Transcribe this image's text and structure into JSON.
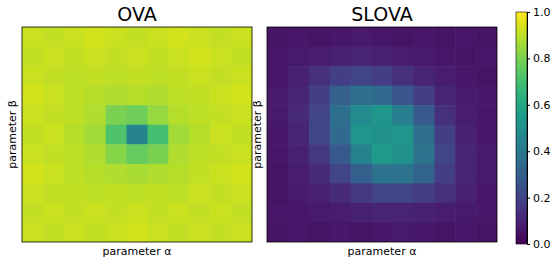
{
  "chart_data": [
    {
      "type": "heatmap",
      "title": "OVA",
      "x_label": "parameter α",
      "y_label": "parameter β",
      "tick_labels": false,
      "cells": [
        [
          0.92,
          0.91,
          0.92,
          0.93,
          0.92,
          0.91,
          0.92,
          0.93,
          0.92,
          0.91,
          0.92
        ],
        [
          0.91,
          0.92,
          0.91,
          0.92,
          0.91,
          0.92,
          0.91,
          0.92,
          0.93,
          0.92,
          0.91
        ],
        [
          0.92,
          0.91,
          0.9,
          0.91,
          0.9,
          0.91,
          0.9,
          0.91,
          0.92,
          0.91,
          0.92
        ],
        [
          0.93,
          0.92,
          0.9,
          0.89,
          0.88,
          0.89,
          0.88,
          0.9,
          0.91,
          0.92,
          0.93
        ],
        [
          0.92,
          0.91,
          0.9,
          0.88,
          0.8,
          0.78,
          0.84,
          0.89,
          0.9,
          0.91,
          0.92
        ],
        [
          0.91,
          0.92,
          0.89,
          0.86,
          0.72,
          0.45,
          0.7,
          0.86,
          0.89,
          0.92,
          0.91
        ],
        [
          0.92,
          0.91,
          0.9,
          0.88,
          0.82,
          0.76,
          0.8,
          0.88,
          0.9,
          0.91,
          0.92
        ],
        [
          0.93,
          0.92,
          0.9,
          0.89,
          0.88,
          0.87,
          0.88,
          0.89,
          0.91,
          0.92,
          0.93
        ],
        [
          0.92,
          0.91,
          0.91,
          0.9,
          0.91,
          0.9,
          0.91,
          0.9,
          0.92,
          0.91,
          0.92
        ],
        [
          0.91,
          0.92,
          0.91,
          0.92,
          0.91,
          0.92,
          0.91,
          0.92,
          0.91,
          0.92,
          0.91
        ],
        [
          0.92,
          0.91,
          0.92,
          0.91,
          0.92,
          0.93,
          0.92,
          0.91,
          0.92,
          0.91,
          0.92
        ]
      ]
    },
    {
      "type": "heatmap",
      "title": "SLOVA",
      "x_label": "parameter α",
      "y_label": "parameter β",
      "tick_labels": false,
      "cells": [
        [
          0.05,
          0.06,
          0.05,
          0.06,
          0.07,
          0.06,
          0.05,
          0.06,
          0.05,
          0.06,
          0.05
        ],
        [
          0.06,
          0.07,
          0.08,
          0.09,
          0.1,
          0.09,
          0.08,
          0.07,
          0.06,
          0.05,
          0.06
        ],
        [
          0.06,
          0.09,
          0.14,
          0.18,
          0.2,
          0.18,
          0.14,
          0.1,
          0.08,
          0.06,
          0.05
        ],
        [
          0.07,
          0.1,
          0.18,
          0.3,
          0.36,
          0.34,
          0.26,
          0.18,
          0.1,
          0.07,
          0.06
        ],
        [
          0.07,
          0.11,
          0.2,
          0.36,
          0.48,
          0.52,
          0.42,
          0.28,
          0.14,
          0.08,
          0.06
        ],
        [
          0.06,
          0.1,
          0.2,
          0.34,
          0.52,
          0.5,
          0.52,
          0.36,
          0.18,
          0.09,
          0.06
        ],
        [
          0.06,
          0.09,
          0.16,
          0.28,
          0.44,
          0.54,
          0.5,
          0.38,
          0.2,
          0.1,
          0.07
        ],
        [
          0.05,
          0.08,
          0.12,
          0.2,
          0.3,
          0.38,
          0.38,
          0.32,
          0.18,
          0.1,
          0.07
        ],
        [
          0.05,
          0.07,
          0.09,
          0.12,
          0.16,
          0.2,
          0.2,
          0.18,
          0.14,
          0.09,
          0.06
        ],
        [
          0.06,
          0.06,
          0.07,
          0.08,
          0.09,
          0.1,
          0.1,
          0.09,
          0.08,
          0.07,
          0.06
        ],
        [
          0.05,
          0.06,
          0.05,
          0.06,
          0.05,
          0.06,
          0.07,
          0.06,
          0.05,
          0.06,
          0.05
        ]
      ],
      "color_range": [
        0,
        1
      ],
      "color_ticks": [
        {
          "value": 0,
          "label": "0.0"
        },
        {
          "value": 0.2,
          "label": "0.2"
        },
        {
          "value": 0.4,
          "label": "0.4"
        },
        {
          "value": 0.6,
          "label": "0.6"
        },
        {
          "value": 0.8,
          "label": "0.8"
        },
        {
          "value": 1,
          "label": "1.0"
        }
      ]
    }
  ]
}
